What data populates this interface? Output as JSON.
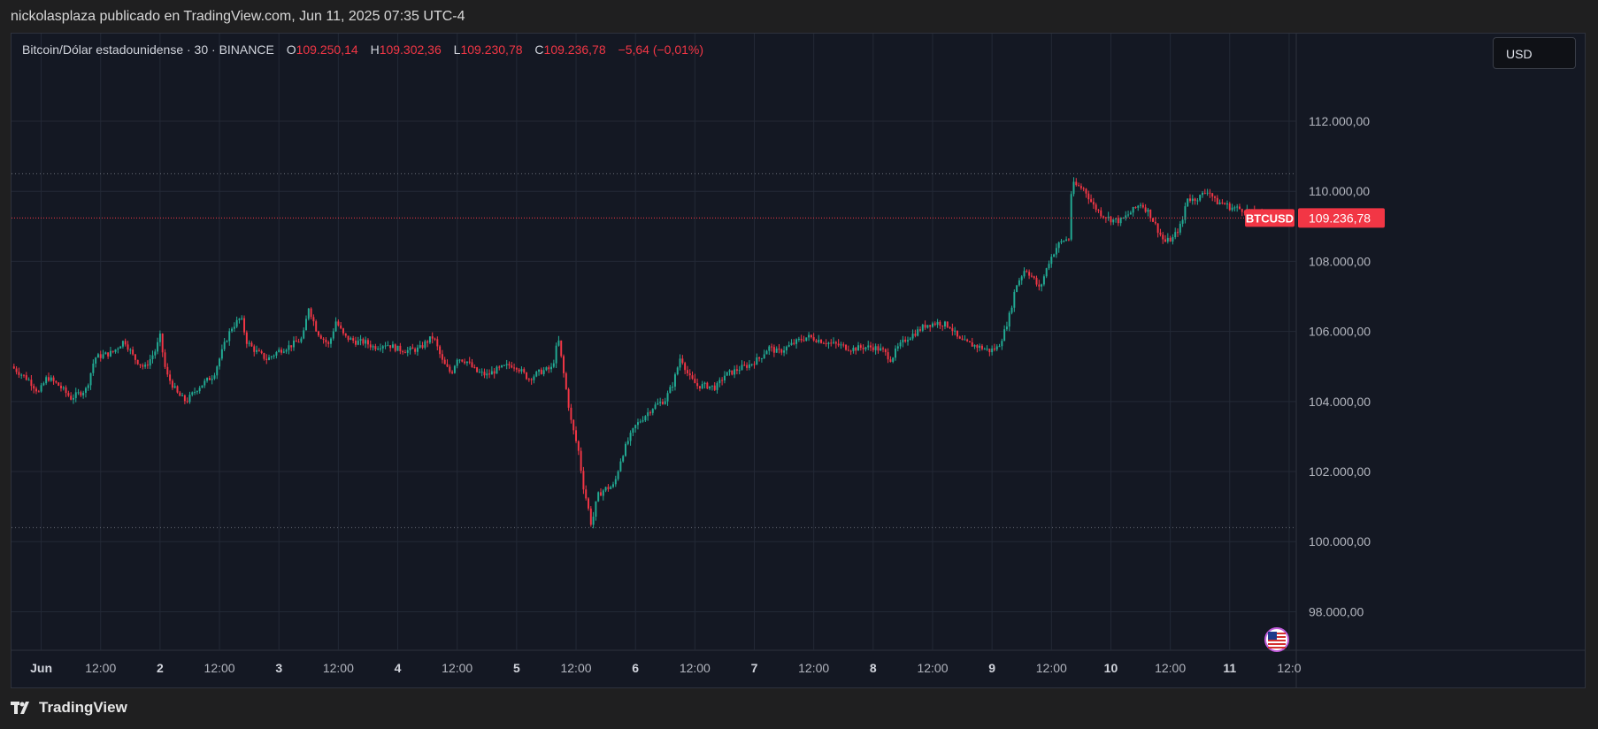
{
  "header": {
    "publish_text": "nickolasplaza publicado en TradingView.com, Jun 11, 2025 07:35 UTC-4"
  },
  "legend": {
    "symbol": "Bitcoin/Dólar estadounidense · 30 · BINANCE",
    "open_label": "O",
    "open_value": "109.250,14",
    "high_label": "H",
    "high_value": "109.302,36",
    "low_label": "L",
    "low_value": "109.230,78",
    "close_label": "C",
    "close_value": "109.236,78",
    "change": "−5,64 (−0,01%)"
  },
  "toolbar": {
    "currency_label": "USD"
  },
  "price_tag": {
    "symbol": "BTCUSD",
    "price": "109.236,78"
  },
  "footer": {
    "brand": "TradingView"
  },
  "colors": {
    "up": "#22ab94",
    "down": "#f23645",
    "background": "#141823",
    "grid": "#232936",
    "axis_text": "#b2b5be"
  },
  "icons": {
    "flag": "us-flag-icon",
    "logo": "tradingview-logo-icon"
  },
  "chart_data": {
    "type": "candlestick",
    "interval": "30",
    "exchange": "BINANCE",
    "y_ticks": [
      {
        "value": 98000,
        "label": "98.000,00"
      },
      {
        "value": 100000,
        "label": "100.000,00"
      },
      {
        "value": 102000,
        "label": "102.000,00"
      },
      {
        "value": 104000,
        "label": "104.000,00"
      },
      {
        "value": 106000,
        "label": "106.000,00"
      },
      {
        "value": 108000,
        "label": "108.000,00"
      },
      {
        "value": 110000,
        "label": "110.000,00"
      },
      {
        "value": 112000,
        "label": "112.000,00"
      }
    ],
    "x_ticks": [
      {
        "day": 1.0,
        "label": "Jun",
        "bold": true
      },
      {
        "day": 1.5,
        "label": "12:00"
      },
      {
        "day": 2.0,
        "label": "2",
        "bold": true
      },
      {
        "day": 2.5,
        "label": "12:00"
      },
      {
        "day": 3.0,
        "label": "3",
        "bold": true
      },
      {
        "day": 3.5,
        "label": "12:00"
      },
      {
        "day": 4.0,
        "label": "4",
        "bold": true
      },
      {
        "day": 4.5,
        "label": "12:00"
      },
      {
        "day": 5.0,
        "label": "5",
        "bold": true
      },
      {
        "day": 5.5,
        "label": "12:00"
      },
      {
        "day": 6.0,
        "label": "6",
        "bold": true
      },
      {
        "day": 6.5,
        "label": "12:00"
      },
      {
        "day": 7.0,
        "label": "7",
        "bold": true
      },
      {
        "day": 7.5,
        "label": "12:00"
      },
      {
        "day": 8.0,
        "label": "8",
        "bold": true
      },
      {
        "day": 8.5,
        "label": "12:00"
      },
      {
        "day": 9.0,
        "label": "9",
        "bold": true
      },
      {
        "day": 9.5,
        "label": "12:00"
      },
      {
        "day": 10.0,
        "label": "10",
        "bold": true
      },
      {
        "day": 10.5,
        "label": "12:00"
      },
      {
        "day": 11.0,
        "label": "11",
        "bold": true
      },
      {
        "day": 11.5,
        "label": "12:0"
      }
    ],
    "y_range": [
      96900,
      114500
    ],
    "x_range": [
      0.75,
      11.56
    ],
    "high_line": 110500,
    "low_line": 100400,
    "last_price": 109236.78,
    "path_points": [
      [
        0.75,
        105000
      ],
      [
        0.9,
        104600
      ],
      [
        0.98,
        104250
      ],
      [
        1.05,
        104700
      ],
      [
        1.15,
        104450
      ],
      [
        1.25,
        104100
      ],
      [
        1.38,
        104350
      ],
      [
        1.45,
        105250
      ],
      [
        1.6,
        105400
      ],
      [
        1.7,
        105750
      ],
      [
        1.78,
        105250
      ],
      [
        1.87,
        104950
      ],
      [
        1.96,
        105450
      ],
      [
        2.0,
        105850
      ],
      [
        2.05,
        104800
      ],
      [
        2.15,
        104200
      ],
      [
        2.22,
        104000
      ],
      [
        2.32,
        104400
      ],
      [
        2.45,
        104750
      ],
      [
        2.55,
        105700
      ],
      [
        2.6,
        106100
      ],
      [
        2.68,
        106400
      ],
      [
        2.73,
        105700
      ],
      [
        2.8,
        105450
      ],
      [
        2.9,
        105200
      ],
      [
        3.0,
        105450
      ],
      [
        3.1,
        105600
      ],
      [
        3.2,
        105800
      ],
      [
        3.25,
        106700
      ],
      [
        3.32,
        106000
      ],
      [
        3.42,
        105600
      ],
      [
        3.48,
        106300
      ],
      [
        3.55,
        105850
      ],
      [
        3.65,
        105700
      ],
      [
        3.72,
        105700
      ],
      [
        3.8,
        105550
      ],
      [
        3.9,
        105650
      ],
      [
        4.0,
        105500
      ],
      [
        4.08,
        105450
      ],
      [
        4.18,
        105500
      ],
      [
        4.24,
        105700
      ],
      [
        4.3,
        105850
      ],
      [
        4.38,
        105100
      ],
      [
        4.45,
        104800
      ],
      [
        4.5,
        105250
      ],
      [
        4.58,
        105150
      ],
      [
        4.66,
        104850
      ],
      [
        4.75,
        104750
      ],
      [
        4.83,
        104900
      ],
      [
        4.95,
        105050
      ],
      [
        5.0,
        105000
      ],
      [
        5.1,
        104650
      ],
      [
        5.2,
        104850
      ],
      [
        5.3,
        104950
      ],
      [
        5.35,
        105800
      ],
      [
        5.4,
        104700
      ],
      [
        5.46,
        103400
      ],
      [
        5.52,
        102600
      ],
      [
        5.56,
        101600
      ],
      [
        5.6,
        101000
      ],
      [
        5.63,
        100450
      ],
      [
        5.68,
        101300
      ],
      [
        5.74,
        101500
      ],
      [
        5.82,
        101600
      ],
      [
        5.88,
        102400
      ],
      [
        5.94,
        102900
      ],
      [
        6.0,
        103300
      ],
      [
        6.08,
        103600
      ],
      [
        6.15,
        103850
      ],
      [
        6.25,
        104050
      ],
      [
        6.32,
        104550
      ],
      [
        6.38,
        105300
      ],
      [
        6.45,
        104700
      ],
      [
        6.52,
        104450
      ],
      [
        6.6,
        104450
      ],
      [
        6.68,
        104400
      ],
      [
        6.75,
        104750
      ],
      [
        6.82,
        104850
      ],
      [
        6.88,
        104950
      ],
      [
        6.96,
        105050
      ],
      [
        7.05,
        105250
      ],
      [
        7.12,
        105550
      ],
      [
        7.2,
        105400
      ],
      [
        7.3,
        105600
      ],
      [
        7.38,
        105750
      ],
      [
        7.45,
        105850
      ],
      [
        7.55,
        105750
      ],
      [
        7.65,
        105650
      ],
      [
        7.72,
        105600
      ],
      [
        7.82,
        105500
      ],
      [
        7.92,
        105550
      ],
      [
        8.0,
        105550
      ],
      [
        8.08,
        105450
      ],
      [
        8.15,
        105200
      ],
      [
        8.2,
        105500
      ],
      [
        8.28,
        105800
      ],
      [
        8.35,
        105950
      ],
      [
        8.45,
        106200
      ],
      [
        8.55,
        106250
      ],
      [
        8.65,
        106150
      ],
      [
        8.72,
        105750
      ],
      [
        8.8,
        105650
      ],
      [
        8.9,
        105550
      ],
      [
        8.98,
        105450
      ],
      [
        9.05,
        105550
      ],
      [
        9.1,
        105950
      ],
      [
        9.15,
        106500
      ],
      [
        9.2,
        107300
      ],
      [
        9.28,
        107800
      ],
      [
        9.35,
        107500
      ],
      [
        9.4,
        107200
      ],
      [
        9.48,
        108000
      ],
      [
        9.55,
        108450
      ],
      [
        9.6,
        108600
      ],
      [
        9.65,
        108650
      ],
      [
        9.67,
        110200
      ],
      [
        9.72,
        110150
      ],
      [
        9.78,
        110050
      ],
      [
        9.85,
        109600
      ],
      [
        9.92,
        109350
      ],
      [
        10.0,
        109200
      ],
      [
        10.08,
        109150
      ],
      [
        10.15,
        109350
      ],
      [
        10.2,
        109500
      ],
      [
        10.25,
        109650
      ],
      [
        10.32,
        109400
      ],
      [
        10.38,
        109000
      ],
      [
        10.45,
        108550
      ],
      [
        10.52,
        108650
      ],
      [
        10.6,
        109100
      ],
      [
        10.64,
        109850
      ],
      [
        10.68,
        109750
      ],
      [
        10.75,
        109850
      ],
      [
        10.82,
        110050
      ],
      [
        10.88,
        109700
      ],
      [
        10.95,
        109650
      ],
      [
        11.0,
        109550
      ],
      [
        11.08,
        109500
      ],
      [
        11.15,
        109450
      ],
      [
        11.2,
        109350
      ],
      [
        11.3,
        109250
      ],
      [
        11.35,
        109236.78
      ]
    ]
  }
}
